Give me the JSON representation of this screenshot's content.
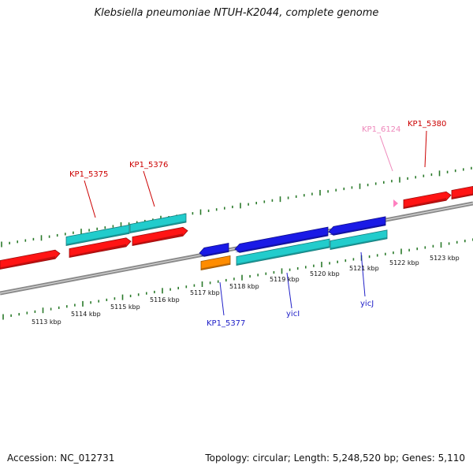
{
  "title": "Klebsiella pneumoniae NTUH-K2044, complete genome",
  "footer": {
    "accession": "Accession: NC_012731",
    "stats": "Topology: circular; Length: 5,248,520 bp; Genes: 5,110"
  },
  "colors": {
    "tick": "#2a7a2a",
    "backbone": "#8a8a8a",
    "cds": "#ff1414",
    "gene": "#1a1ae6",
    "rrna": "#22cccc",
    "pseudo": "#ff8c00",
    "pink": "#ff80c0",
    "label_red": "#cc0000",
    "label_blue": "#2020c8",
    "label_pink": "#ee88bb"
  },
  "scale": {
    "ticks": [
      "5113 kbp",
      "5114 kbp",
      "5115 kbp",
      "5116 kbp",
      "5117 kbp",
      "5118 kbp",
      "5119 kbp",
      "5120 kbp",
      "5121 kbp",
      "5122 kbp",
      "5123 kbp"
    ]
  },
  "features": {
    "top": [
      {
        "name": "KP1_5375",
        "type": "cds",
        "strand": "forward"
      },
      {
        "name": "KP1_5376",
        "type": "cds",
        "strand": "forward"
      },
      {
        "name": "KP1_6124",
        "type": "pink",
        "strand": "forward"
      },
      {
        "name": "KP1_5380",
        "type": "cds",
        "strand": "forward"
      }
    ],
    "bottom": [
      {
        "name": "KP1_5377",
        "type": "gene",
        "strand": "reverse"
      },
      {
        "name": "yicI",
        "type": "gene",
        "strand": "reverse"
      },
      {
        "name": "yicJ",
        "type": "gene",
        "strand": "reverse"
      }
    ]
  }
}
